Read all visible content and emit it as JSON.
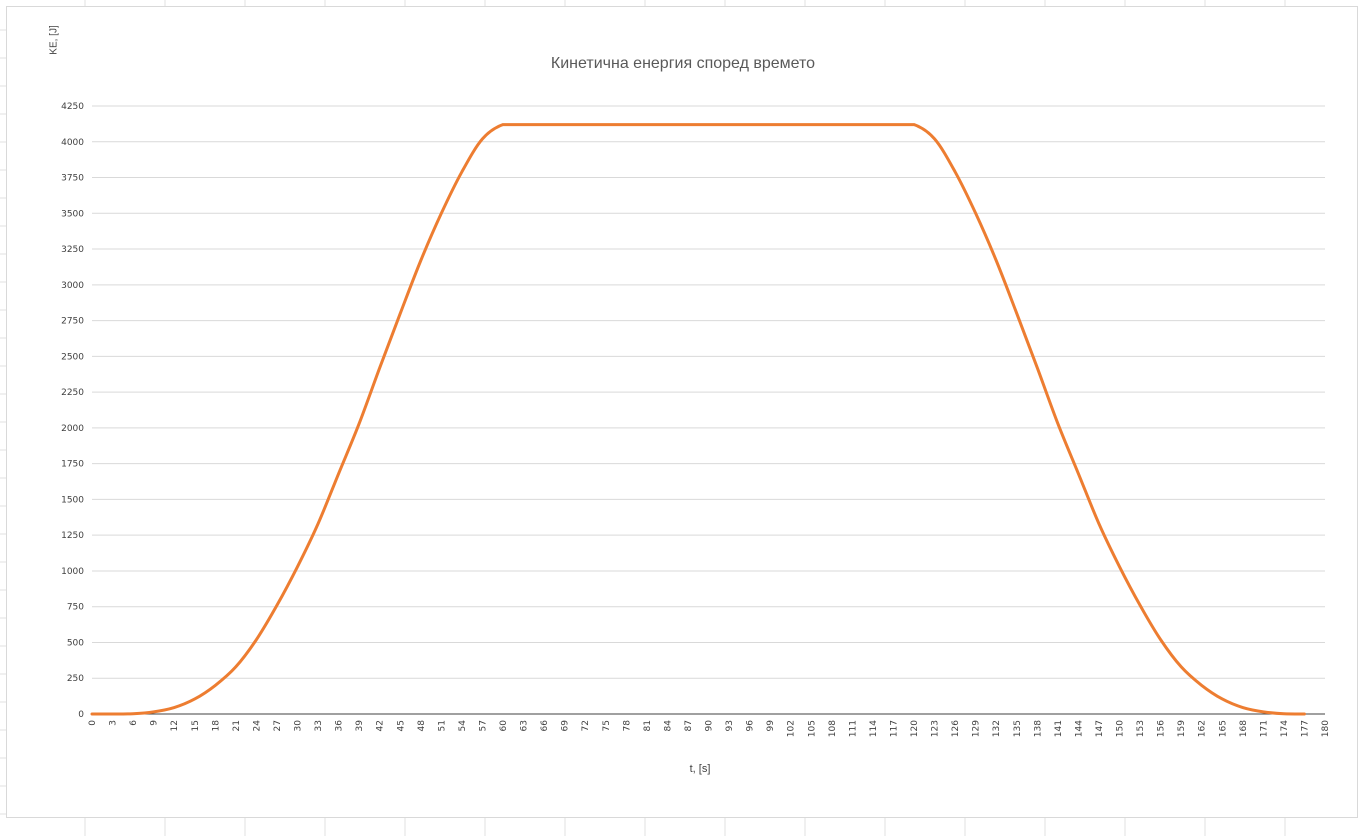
{
  "chart_data": {
    "type": "line",
    "title": "Кинетична енергия според времето",
    "xlabel": "t, [s]",
    "ylabel": "KE, [J]",
    "xlim": [
      0,
      180
    ],
    "ylim": [
      0,
      4250
    ],
    "y_ticks": [
      0,
      250,
      500,
      750,
      1000,
      1250,
      1500,
      1750,
      2000,
      2250,
      2500,
      2750,
      3000,
      3250,
      3500,
      3750,
      4000,
      4250
    ],
    "x_ticks": [
      0,
      3,
      6,
      9,
      12,
      15,
      18,
      21,
      24,
      27,
      30,
      33,
      36,
      39,
      42,
      45,
      48,
      51,
      54,
      57,
      60,
      63,
      66,
      69,
      72,
      75,
      78,
      81,
      84,
      87,
      90,
      93,
      96,
      99,
      102,
      105,
      108,
      111,
      114,
      117,
      120,
      123,
      126,
      129,
      132,
      135,
      138,
      141,
      144,
      147,
      150,
      153,
      156,
      159,
      162,
      165,
      168,
      171,
      174,
      177,
      180
    ],
    "grid": true,
    "legend": "none",
    "series": [
      {
        "color": "#ed7d31",
        "x": [
          0,
          3,
          6,
          9,
          12,
          15,
          18,
          21,
          24,
          27,
          30,
          33,
          36,
          39,
          42,
          45,
          48,
          51,
          54,
          57,
          60,
          63,
          66,
          69,
          72,
          75,
          78,
          81,
          84,
          87,
          90,
          93,
          96,
          99,
          102,
          105,
          108,
          111,
          114,
          117,
          120,
          123,
          126,
          129,
          132,
          135,
          138,
          141,
          144,
          147,
          150,
          153,
          156,
          159,
          162,
          165,
          168,
          171,
          174,
          177
        ],
        "values": [
          0,
          0,
          2,
          15,
          45,
          105,
          200,
          330,
          520,
          760,
          1030,
          1330,
          1680,
          2030,
          2420,
          2800,
          3170,
          3500,
          3790,
          4020,
          4120,
          4120,
          4120,
          4120,
          4120,
          4120,
          4120,
          4120,
          4120,
          4120,
          4120,
          4120,
          4120,
          4120,
          4120,
          4120,
          4120,
          4120,
          4120,
          4120,
          4120,
          4020,
          3790,
          3500,
          3170,
          2800,
          2420,
          2030,
          1680,
          1330,
          1030,
          760,
          520,
          330,
          200,
          105,
          45,
          15,
          2,
          0
        ]
      }
    ]
  }
}
